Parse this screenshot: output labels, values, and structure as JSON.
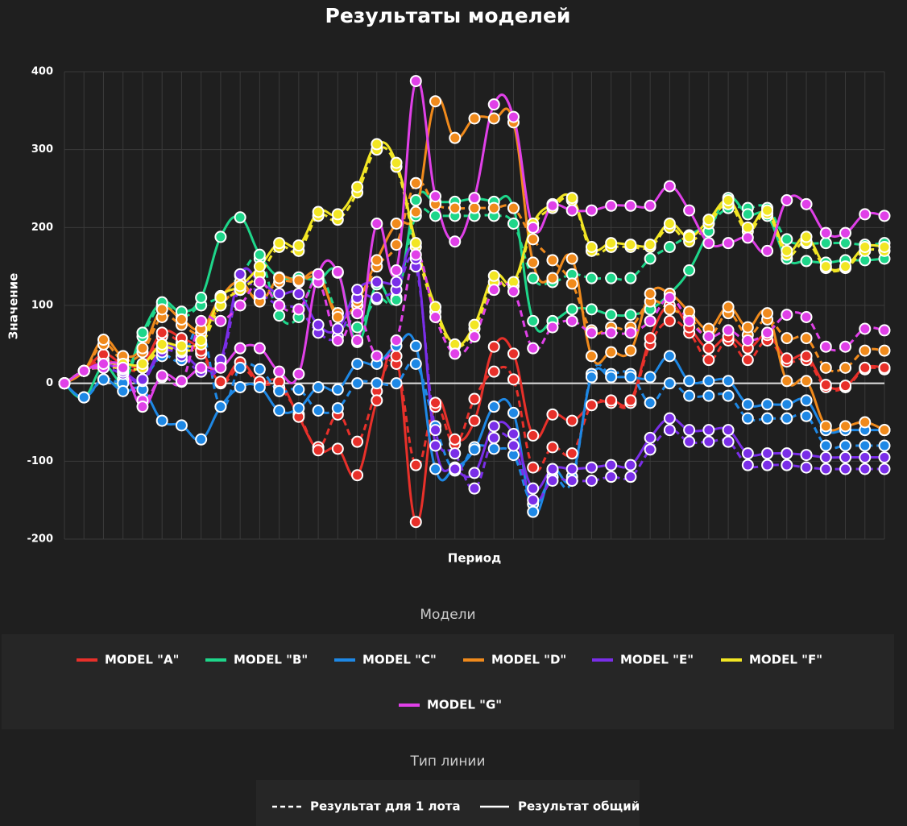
{
  "chart_data": {
    "type": "line",
    "title": "Результаты моделей",
    "x_label": "Период",
    "y_label": "Значение",
    "categories": [
      null,
      null,
      null,
      null,
      null,
      null,
      null,
      null,
      null,
      null,
      null,
      null,
      null,
      null,
      null,
      null,
      null,
      null,
      null,
      null,
      null,
      null,
      null,
      null,
      null,
      null,
      null,
      null,
      null,
      null,
      null,
      null,
      null,
      null,
      null,
      null,
      null,
      null,
      null,
      null,
      null,
      null,
      null
    ],
    "ylim": [
      -200,
      400
    ],
    "yticks": [
      -200,
      -100,
      0,
      100,
      200,
      300,
      400
    ],
    "grid": true,
    "legend_title": "Модели",
    "line_type_title": "Тип линии",
    "line_types": [
      {
        "name": "Результат для 1 лота",
        "dash": true
      },
      {
        "name": "Результат общий",
        "dash": false
      }
    ],
    "series": [
      {
        "name": "MODEL \"A\"",
        "color": "#e8302a",
        "values": [
          0,
          16,
          37,
          25,
          25,
          65,
          58,
          42,
          2,
          27,
          2,
          2,
          -43,
          -86,
          -84,
          -118,
          -22,
          35,
          -178,
          -25,
          -72,
          -48,
          47,
          38,
          -67,
          -40,
          -48,
          -28,
          -22,
          -22,
          58,
          100,
          72,
          45,
          60,
          45,
          62,
          32,
          35,
          -2,
          -3,
          20,
          20
        ],
        "lot_values": [
          0,
          16,
          30,
          20,
          20,
          60,
          52,
          38,
          0,
          20,
          0,
          -5,
          -40,
          -82,
          -40,
          -75,
          -10,
          25,
          -105,
          -30,
          -78,
          -20,
          15,
          5,
          -108,
          -82,
          -90,
          -28,
          -25,
          -25,
          50,
          80,
          65,
          30,
          55,
          30,
          55,
          28,
          30,
          -5,
          -5,
          18,
          18
        ]
      },
      {
        "name": "MODEL \"B\"",
        "color": "#1ed68a",
        "values": [
          0,
          -18,
          22,
          5,
          65,
          104,
          92,
          110,
          188,
          213,
          165,
          136,
          136,
          133,
          142,
          53,
          127,
          107,
          235,
          233,
          233,
          237,
          233,
          225,
          80,
          80,
          95,
          95,
          88,
          88,
          95,
          115,
          145,
          195,
          238,
          217,
          215,
          160,
          157,
          155,
          158,
          158,
          160
        ],
        "lot_values": [
          0,
          -18,
          5,
          0,
          60,
          100,
          85,
          100,
          112,
          138,
          160,
          87,
          85,
          140,
          90,
          72,
          108,
          110,
          215,
          215,
          215,
          215,
          215,
          205,
          135,
          130,
          140,
          135,
          135,
          135,
          160,
          175,
          190,
          205,
          225,
          225,
          225,
          185,
          180,
          180,
          180,
          178,
          180
        ]
      },
      {
        "name": "MODEL \"C\"",
        "color": "#1e88e5",
        "values": [
          0,
          -18,
          5,
          -10,
          -8,
          -48,
          -54,
          -72,
          -30,
          -5,
          -5,
          -35,
          -32,
          -5,
          -8,
          25,
          25,
          48,
          48,
          -110,
          -108,
          -85,
          -30,
          -38,
          -165,
          -112,
          -120,
          8,
          8,
          8,
          8,
          35,
          3,
          3,
          3,
          -27,
          -27,
          -27,
          -22,
          -60,
          -60,
          -60,
          -60
        ],
        "lot_values": [
          0,
          -18,
          5,
          0,
          5,
          35,
          30,
          70,
          -30,
          20,
          18,
          -10,
          -8,
          -35,
          -32,
          0,
          0,
          0,
          25,
          -55,
          -112,
          -82,
          -84,
          -92,
          -155,
          -120,
          -125,
          12,
          12,
          12,
          -25,
          0,
          -16,
          -16,
          -16,
          -45,
          -45,
          -45,
          -42,
          -80,
          -80,
          -80,
          -80
        ]
      },
      {
        "name": "MODEL \"D\"",
        "color": "#f08a1c",
        "values": [
          0,
          16,
          56,
          35,
          45,
          95,
          82,
          70,
          110,
          130,
          105,
          135,
          132,
          140,
          85,
          105,
          158,
          205,
          220,
          362,
          315,
          340,
          340,
          335,
          155,
          135,
          160,
          35,
          40,
          42,
          115,
          115,
          92,
          70,
          98,
          72,
          90,
          3,
          3,
          -55,
          -55,
          -50,
          -60
        ],
        "lot_values": [
          0,
          16,
          50,
          30,
          40,
          85,
          75,
          65,
          100,
          120,
          110,
          130,
          130,
          135,
          90,
          100,
          150,
          178,
          257,
          230,
          225,
          225,
          225,
          225,
          185,
          158,
          128,
          68,
          72,
          72,
          105,
          95,
          85,
          60,
          90,
          62,
          82,
          58,
          58,
          20,
          20,
          42,
          42
        ]
      },
      {
        "name": "MODEL \"E\"",
        "color": "#7a2ee8",
        "values": [
          0,
          16,
          25,
          15,
          5,
          45,
          40,
          20,
          30,
          140,
          130,
          115,
          115,
          75,
          70,
          120,
          130,
          130,
          160,
          -80,
          -110,
          -115,
          -55,
          -65,
          -135,
          -110,
          -110,
          -108,
          -105,
          -105,
          -70,
          -45,
          -60,
          -60,
          -60,
          -90,
          -90,
          -90,
          -92,
          -95,
          -95,
          -95,
          -95
        ],
        "lot_values": [
          0,
          16,
          20,
          12,
          3,
          40,
          35,
          15,
          25,
          125,
          115,
          100,
          95,
          65,
          60,
          110,
          110,
          120,
          150,
          -60,
          -90,
          -135,
          -70,
          -80,
          -150,
          -125,
          -125,
          -125,
          -120,
          -120,
          -85,
          -60,
          -75,
          -75,
          -75,
          -105,
          -105,
          -105,
          -108,
          -110,
          -110,
          -110,
          -110
        ]
      },
      {
        "name": "MODEL \"F\"",
        "color": "#f2e624",
        "values": [
          0,
          16,
          25,
          25,
          25,
          50,
          48,
          55,
          110,
          125,
          150,
          180,
          177,
          220,
          217,
          252,
          307,
          283,
          180,
          98,
          50,
          75,
          138,
          130,
          205,
          230,
          238,
          175,
          180,
          178,
          178,
          205,
          188,
          210,
          235,
          200,
          222,
          170,
          188,
          150,
          150,
          175,
          175
        ],
        "lot_values": [
          0,
          16,
          20,
          20,
          20,
          45,
          42,
          50,
          100,
          120,
          140,
          175,
          170,
          215,
          210,
          245,
          300,
          278,
          175,
          92,
          48,
          70,
          130,
          125,
          200,
          225,
          235,
          170,
          175,
          175,
          175,
          200,
          182,
          205,
          230,
          195,
          218,
          165,
          182,
          148,
          148,
          170,
          170
        ]
      },
      {
        "name": "MODEL \"G\"",
        "color": "#e040e8",
        "values": [
          0,
          16,
          25,
          20,
          -30,
          10,
          3,
          20,
          20,
          45,
          45,
          15,
          12,
          140,
          143,
          55,
          205,
          145,
          388,
          240,
          182,
          238,
          358,
          342,
          200,
          228,
          222,
          222,
          228,
          228,
          228,
          253,
          222,
          180,
          180,
          187,
          170,
          235,
          230,
          193,
          193,
          217,
          215
        ],
        "lot_values": [
          0,
          16,
          20,
          18,
          -22,
          8,
          2,
          80,
          80,
          100,
          130,
          100,
          95,
          130,
          55,
          90,
          35,
          55,
          165,
          85,
          38,
          60,
          120,
          118,
          45,
          72,
          80,
          65,
          65,
          65,
          80,
          110,
          80,
          60,
          68,
          55,
          65,
          88,
          85,
          47,
          47,
          70,
          68
        ]
      }
    ]
  }
}
